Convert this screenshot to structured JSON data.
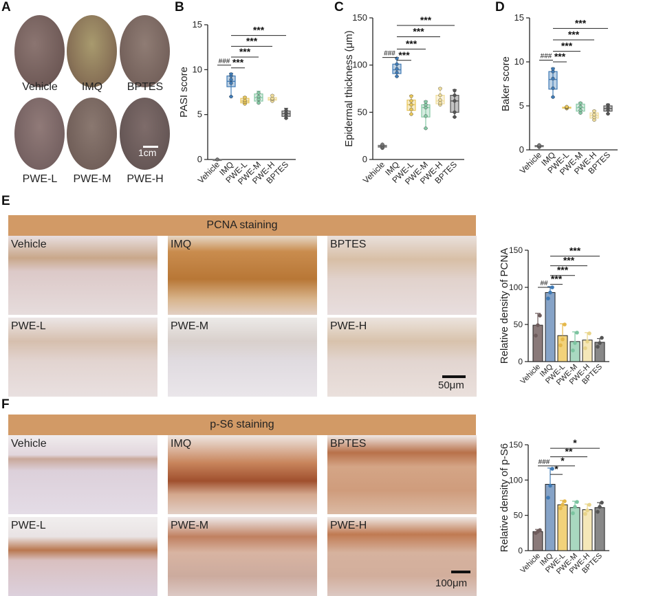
{
  "panel_letters": {
    "a": "A",
    "b": "B",
    "c": "C",
    "d": "D",
    "e": "E",
    "f": "F"
  },
  "panel_a": {
    "labels": [
      "Vehicle",
      "IMQ",
      "BPTES",
      "PWE-L",
      "PWE-M",
      "PWE-H"
    ],
    "scale_bar": "1cm",
    "colors": [
      "#7a6661",
      "#8e7a5c",
      "#7b6c66",
      "#7c6868",
      "#776862",
      "#6e5e5c"
    ]
  },
  "panel_e": {
    "banner": "PCNA staining",
    "labels": [
      "Vehicle",
      "IMQ",
      "BPTES",
      "PWE-L",
      "PWE-M",
      "PWE-H"
    ],
    "scale_bar": "50μm",
    "banner_color": "#d29a66"
  },
  "panel_f": {
    "banner": "p-S6 staining",
    "labels": [
      "Vehicle",
      "IMQ",
      "BPTES",
      "PWE-L",
      "PWE-M",
      "PWE-H"
    ],
    "scale_bar": "100μm"
  },
  "chart_data": [
    {
      "id": "B",
      "type": "box",
      "ylabel": "PASI score",
      "xlabel": "",
      "ylim": [
        0,
        15
      ],
      "yticks": [
        0,
        5,
        10,
        15
      ],
      "categories": [
        "Vehicle",
        "IMQ",
        "PWE-L",
        "PWE-M",
        "PWE-H",
        "BPTES"
      ],
      "colors": [
        "#777777",
        "#3f7ab5",
        "#e8c65a",
        "#86c9a5",
        "#f0dd9a",
        "#555555"
      ],
      "boxes": [
        {
          "min": 0,
          "q1": 0,
          "median": 0,
          "q3": 0,
          "max": 0,
          "points": [
            0,
            0,
            0,
            0
          ]
        },
        {
          "min": 7.0,
          "q1": 8.1,
          "median": 8.7,
          "q3": 9.3,
          "max": 9.6,
          "points": [
            7.0,
            8.5,
            8.9,
            9.3,
            9.5
          ]
        },
        {
          "min": 6.2,
          "q1": 6.3,
          "median": 6.5,
          "q3": 6.8,
          "max": 7.0,
          "points": [
            6.2,
            6.4,
            6.6,
            6.9
          ]
        },
        {
          "min": 6.3,
          "q1": 6.5,
          "median": 6.9,
          "q3": 7.3,
          "max": 7.6,
          "points": [
            6.3,
            6.7,
            7.0,
            7.4
          ]
        },
        {
          "min": 6.5,
          "q1": 6.6,
          "median": 6.7,
          "q3": 6.9,
          "max": 7.2,
          "points": [
            6.5,
            6.7,
            6.8,
            7.1
          ]
        },
        {
          "min": 4.6,
          "q1": 4.8,
          "median": 5.1,
          "q3": 5.4,
          "max": 5.7,
          "points": [
            4.6,
            4.9,
            5.2,
            5.5
          ]
        }
      ],
      "annotations": [
        {
          "text": "###",
          "from": 0,
          "to": 1,
          "y": 10.5,
          "small": true
        },
        {
          "text": "***",
          "from": 1,
          "to": 2,
          "y": 10.2
        },
        {
          "text": "***",
          "from": 1,
          "to": 3,
          "y": 11.4
        },
        {
          "text": "***",
          "from": 1,
          "to": 4,
          "y": 12.6
        },
        {
          "text": "***",
          "from": 1,
          "to": 5,
          "y": 13.8
        }
      ]
    },
    {
      "id": "C",
      "type": "box",
      "ylabel": "Epidermal thickness (μm)",
      "xlabel": "",
      "ylim": [
        0,
        150
      ],
      "yticks": [
        0,
        50,
        100,
        150
      ],
      "categories": [
        "Vehicle",
        "IMQ",
        "PWE-L",
        "PWE-M",
        "PWE-H",
        "BPTES"
      ],
      "colors": [
        "#777777",
        "#3f7ab5",
        "#e8c65a",
        "#86c9a5",
        "#f0dd9a",
        "#555555"
      ],
      "boxes": [
        {
          "min": 12,
          "q1": 13,
          "median": 14,
          "q3": 15,
          "max": 16,
          "points": [
            12,
            13,
            14,
            15,
            16
          ]
        },
        {
          "min": 88,
          "q1": 91,
          "median": 95,
          "q3": 101,
          "max": 108,
          "points": [
            88,
            92,
            96,
            101,
            107
          ]
        },
        {
          "min": 48,
          "q1": 52,
          "median": 58,
          "q3": 63,
          "max": 68,
          "points": [
            48,
            53,
            58,
            62,
            67
          ]
        },
        {
          "min": 33,
          "q1": 45,
          "median": 55,
          "q3": 58,
          "max": 62,
          "points": [
            33,
            46,
            55,
            58,
            61
          ]
        },
        {
          "min": 58,
          "q1": 59,
          "median": 62,
          "q3": 68,
          "max": 76,
          "points": [
            58,
            60,
            63,
            68,
            75
          ]
        },
        {
          "min": 45,
          "q1": 50,
          "median": 62,
          "q3": 68,
          "max": 74,
          "points": [
            45,
            50,
            62,
            68,
            73
          ]
        }
      ],
      "annotations": [
        {
          "text": "###",
          "from": 0,
          "to": 1,
          "y": 108,
          "small": true
        },
        {
          "text": "***",
          "from": 1,
          "to": 2,
          "y": 105
        },
        {
          "text": "***",
          "from": 1,
          "to": 3,
          "y": 117
        },
        {
          "text": "***",
          "from": 1,
          "to": 4,
          "y": 130
        },
        {
          "text": "***",
          "from": 1,
          "to": 5,
          "y": 142
        }
      ]
    },
    {
      "id": "D",
      "type": "box",
      "ylabel": "Baker score",
      "xlabel": "",
      "ylim": [
        0,
        15
      ],
      "yticks": [
        0,
        5,
        10,
        15
      ],
      "categories": [
        "Vehicle",
        "IMQ",
        "PWE-L",
        "PWE-M",
        "PWE-H",
        "BPTES"
      ],
      "colors": [
        "#777777",
        "#3f7ab5",
        "#e8c65a",
        "#86c9a5",
        "#f0dd9a",
        "#555555"
      ],
      "boxes": [
        {
          "min": 0.3,
          "q1": 0.35,
          "median": 0.45,
          "q3": 0.5,
          "max": 0.55,
          "points": [
            0.3,
            0.4,
            0.5,
            0.55
          ]
        },
        {
          "min": 6.0,
          "q1": 6.9,
          "median": 8.0,
          "q3": 8.9,
          "max": 9.3,
          "points": [
            6.0,
            7.0,
            8.1,
            8.9,
            9.2
          ]
        },
        {
          "min": 4.7,
          "q1": 4.75,
          "median": 4.8,
          "q3": 4.85,
          "max": 4.9,
          "points": [
            4.7,
            4.8,
            4.85,
            4.9
          ]
        },
        {
          "min": 4.2,
          "q1": 4.4,
          "median": 4.8,
          "q3": 5.2,
          "max": 5.4,
          "points": [
            4.2,
            4.5,
            4.9,
            5.3
          ]
        },
        {
          "min": 3.4,
          "q1": 3.6,
          "median": 3.9,
          "q3": 4.2,
          "max": 4.5,
          "points": [
            3.4,
            3.7,
            4.0,
            4.4
          ]
        },
        {
          "min": 4.1,
          "q1": 4.4,
          "median": 4.7,
          "q3": 5.0,
          "max": 5.2,
          "points": [
            4.1,
            4.5,
            4.8,
            5.1
          ]
        }
      ],
      "annotations": [
        {
          "text": "###",
          "from": 0,
          "to": 1,
          "y": 10.2,
          "small": true
        },
        {
          "text": "***",
          "from": 1,
          "to": 2,
          "y": 10.0
        },
        {
          "text": "***",
          "from": 1,
          "to": 3,
          "y": 11.2
        },
        {
          "text": "***",
          "from": 1,
          "to": 4,
          "y": 12.5
        },
        {
          "text": "***",
          "from": 1,
          "to": 5,
          "y": 13.8
        }
      ]
    },
    {
      "id": "E",
      "type": "bar",
      "ylabel": "Relative density of PCNA",
      "xlabel": "",
      "ylim": [
        0,
        150
      ],
      "yticks": [
        0,
        50,
        100,
        150
      ],
      "categories": [
        "Vehicle",
        "IMQ",
        "PWE-L",
        "PWE-M",
        "PWE-H",
        "BPTES"
      ],
      "colors": [
        "#8a7a7a",
        "#86a3c7",
        "#f2d27a",
        "#a9d8c0",
        "#f5e7b8",
        "#888888"
      ],
      "dot_colors": [
        "#6e5c5c",
        "#3f7ab5",
        "#e5b84a",
        "#7cc4a0",
        "#e8d48a",
        "#555555"
      ],
      "values": [
        49,
        93,
        35,
        27,
        29,
        26
      ],
      "errors": [
        16,
        8,
        16,
        13,
        10,
        5
      ],
      "points": [
        [
          35,
          49,
          62
        ],
        [
          85,
          93,
          100
        ],
        [
          22,
          30,
          50
        ],
        [
          15,
          25,
          39
        ],
        [
          18,
          27,
          38
        ],
        [
          20,
          25,
          32
        ]
      ],
      "annotations": [
        {
          "text": "##",
          "from": 0,
          "to": 1,
          "y": 100,
          "small": true
        },
        {
          "text": "***",
          "from": 1,
          "to": 2,
          "y": 104
        },
        {
          "text": "***",
          "from": 1,
          "to": 3,
          "y": 116
        },
        {
          "text": "***",
          "from": 1,
          "to": 4,
          "y": 129
        },
        {
          "text": "***",
          "from": 1,
          "to": 5,
          "y": 142
        }
      ]
    },
    {
      "id": "F",
      "type": "bar",
      "ylabel": "Relative density of p-S6",
      "xlabel": "",
      "ylim": [
        0,
        150
      ],
      "yticks": [
        0,
        50,
        100,
        150
      ],
      "categories": [
        "Vehicle",
        "IMQ",
        "PWE-L",
        "PWE-M",
        "PWE-H",
        "BPTES"
      ],
      "colors": [
        "#8a7a7a",
        "#86a3c7",
        "#f2d27a",
        "#a9d8c0",
        "#f5e7b8",
        "#888888"
      ],
      "dot_colors": [
        "#6e5c5c",
        "#3f7ab5",
        "#e5b84a",
        "#7cc4a0",
        "#e8d48a",
        "#555555"
      ],
      "values": [
        27,
        94,
        65,
        61,
        58,
        61
      ],
      "errors": [
        3,
        23,
        6,
        9,
        8,
        7
      ],
      "points": [
        [
          25,
          27,
          29
        ],
        [
          75,
          92,
          116
        ],
        [
          60,
          65,
          70
        ],
        [
          53,
          62,
          69
        ],
        [
          52,
          57,
          65
        ],
        [
          55,
          62,
          68
        ]
      ],
      "annotations": [
        {
          "text": "###",
          "from": 0,
          "to": 1,
          "y": 120,
          "small": true
        },
        {
          "text": "*",
          "from": 1,
          "to": 2,
          "y": 108
        },
        {
          "text": "*",
          "from": 1,
          "to": 3,
          "y": 120
        },
        {
          "text": "**",
          "from": 1,
          "to": 4,
          "y": 133
        },
        {
          "text": "*",
          "from": 1,
          "to": 5,
          "y": 145
        }
      ]
    }
  ]
}
